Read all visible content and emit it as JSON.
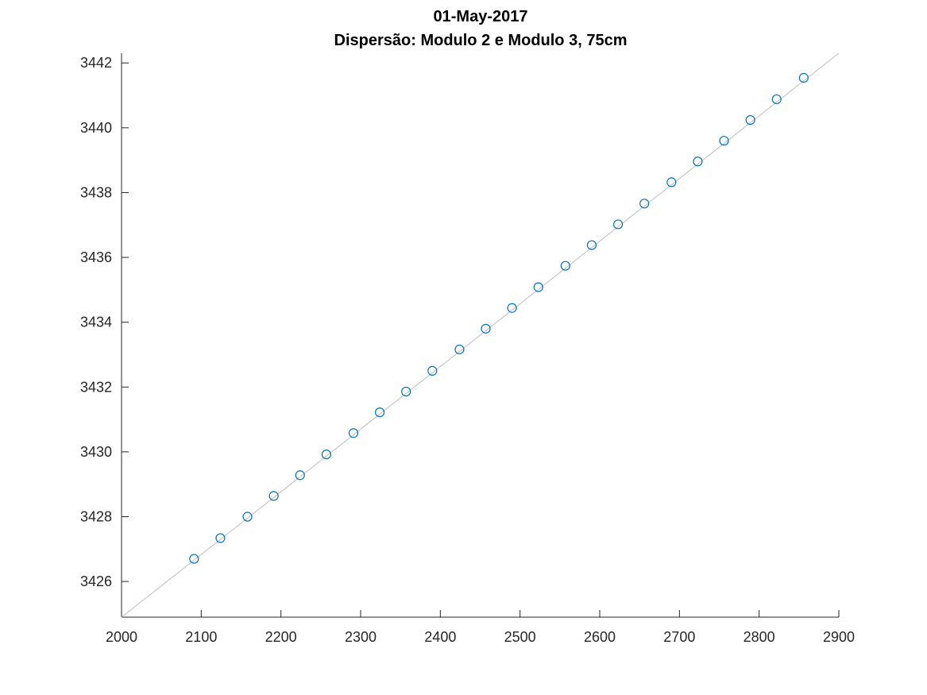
{
  "chart_data": {
    "type": "scatter",
    "title": "01-May-2017",
    "subtitle": "Dispersão: Modulo 2 e Modulo 3, 75cm",
    "xlabel": "",
    "ylabel": "",
    "xlim": [
      2000,
      2900
    ],
    "ylim": [
      3424.9,
      3442.3
    ],
    "xticks": [
      2000,
      2100,
      2200,
      2300,
      2400,
      2500,
      2600,
      2700,
      2800,
      2900
    ],
    "yticks": [
      3426,
      3428,
      3430,
      3432,
      3434,
      3436,
      3438,
      3440,
      3442
    ],
    "grid": false,
    "legend": "none",
    "marker": "open-circle",
    "marker_color": "#0072BD",
    "reference_line": {
      "color": "#bdbdbd",
      "from": [
        2000,
        3424.9
      ],
      "to": [
        2900,
        3442.3
      ]
    },
    "points": [
      {
        "x": 2091,
        "y": 3426.7
      },
      {
        "x": 2124,
        "y": 3427.34
      },
      {
        "x": 2158,
        "y": 3428.0
      },
      {
        "x": 2191,
        "y": 3428.64
      },
      {
        "x": 2224,
        "y": 3429.28
      },
      {
        "x": 2257,
        "y": 3429.92
      },
      {
        "x": 2291,
        "y": 3430.58
      },
      {
        "x": 2324,
        "y": 3431.22
      },
      {
        "x": 2357,
        "y": 3431.86
      },
      {
        "x": 2390,
        "y": 3432.5
      },
      {
        "x": 2424,
        "y": 3433.16
      },
      {
        "x": 2457,
        "y": 3433.8
      },
      {
        "x": 2490,
        "y": 3434.44
      },
      {
        "x": 2523,
        "y": 3435.08
      },
      {
        "x": 2557,
        "y": 3435.74
      },
      {
        "x": 2590,
        "y": 3436.38
      },
      {
        "x": 2623,
        "y": 3437.02
      },
      {
        "x": 2656,
        "y": 3437.66
      },
      {
        "x": 2690,
        "y": 3438.32
      },
      {
        "x": 2723,
        "y": 3438.96
      },
      {
        "x": 2756,
        "y": 3439.6
      },
      {
        "x": 2789,
        "y": 3440.24
      },
      {
        "x": 2822,
        "y": 3440.88
      },
      {
        "x": 2856,
        "y": 3441.54
      }
    ]
  }
}
